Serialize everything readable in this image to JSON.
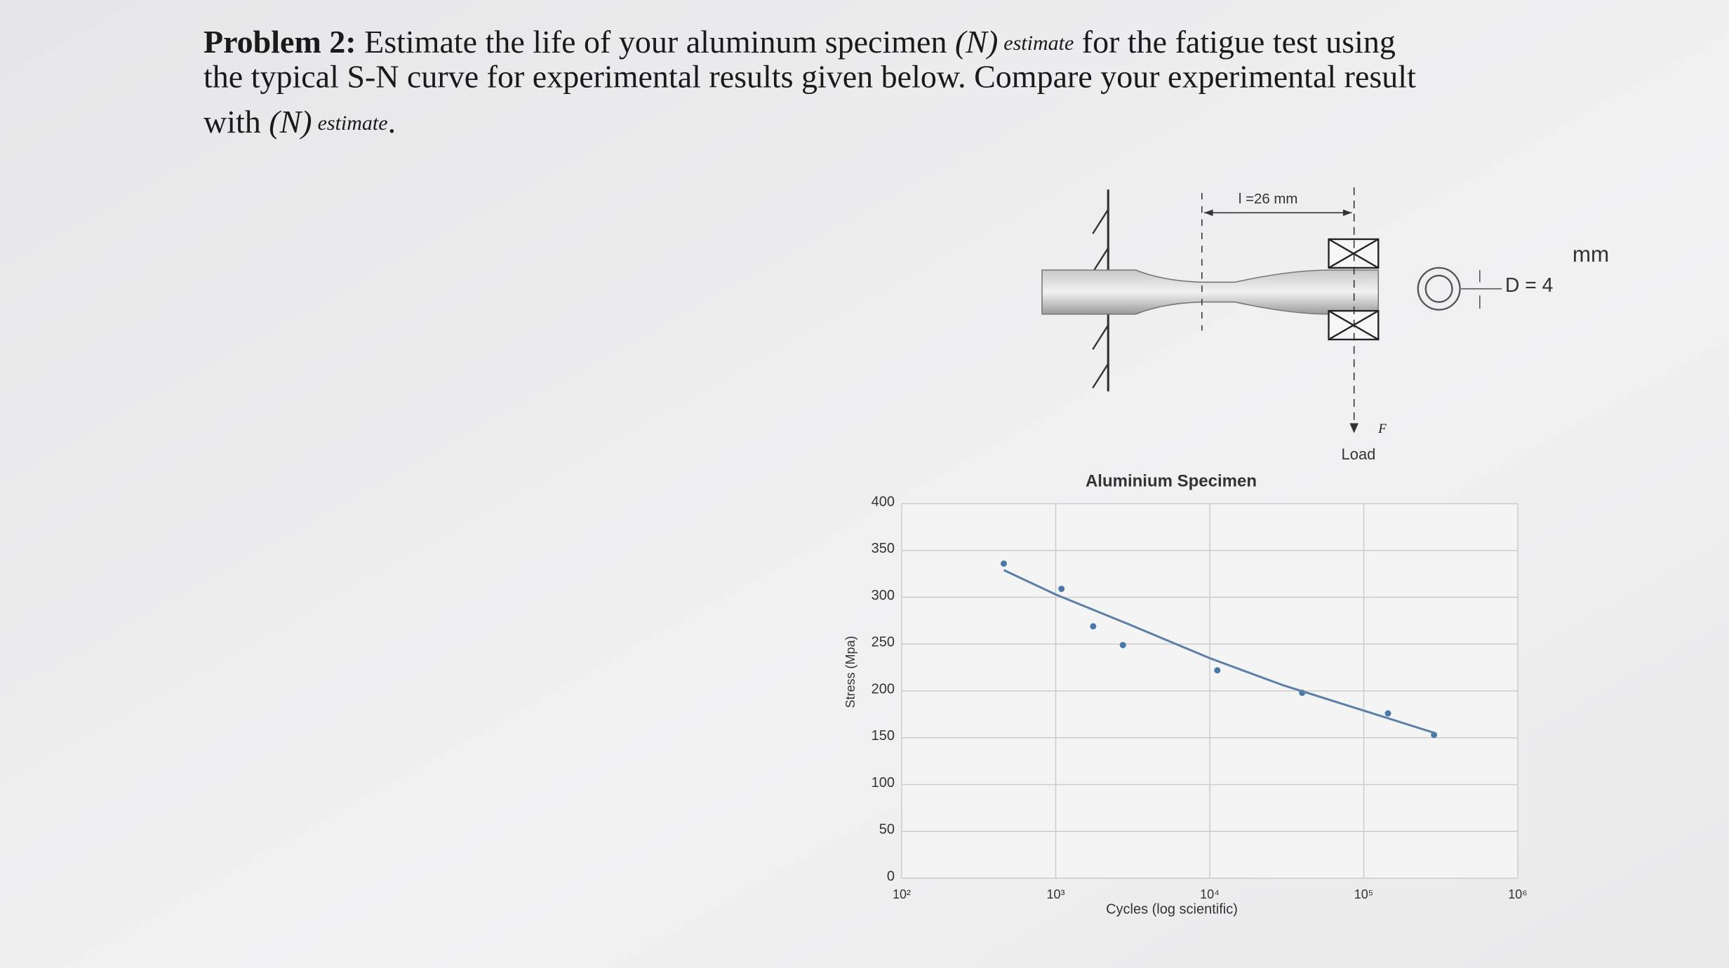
{
  "problem": {
    "label": "Problem 2:",
    "line1": " Estimate the life of your aluminum specimen ",
    "n1": "(N)",
    "est1": "estimate",
    "line1b": " for the fatigue test using",
    "line2": "the typical S-N curve for experimental results given below. Compare your experimental result",
    "line3": "with ",
    "n3": "(N)",
    "est3": "estimate",
    "dot": "."
  },
  "diagram": {
    "length": "l =26 mm",
    "force": "F",
    "load": "Load",
    "diameter": "D = 4",
    "unit": "mm"
  },
  "chart_data": {
    "type": "scatter",
    "title": "Aluminium Specimen",
    "x_label": "Cycles (log scientific)",
    "y_label": "Stress (Mpa)",
    "xscale": "log",
    "xlim": [
      100,
      1000000
    ],
    "xticks": [
      {
        "value": 100,
        "label": "10²"
      },
      {
        "value": 1000,
        "label": "10³"
      },
      {
        "value": 10000,
        "label": "10⁴"
      },
      {
        "value": 100000,
        "label": "10⁵"
      },
      {
        "value": 1000000,
        "label": "10⁶"
      }
    ],
    "ylim": [
      0,
      400
    ],
    "yticks": [
      0,
      50,
      100,
      150,
      200,
      250,
      300,
      350,
      400
    ],
    "grid": true,
    "series": [
      {
        "mode": "markers",
        "color": "#4a78a8",
        "x": [
          460,
          1090,
          1750,
          2730,
          11200,
          39800,
          143600,
          286000
        ],
        "values": [
          336,
          309,
          269,
          249,
          222,
          198,
          176,
          153
        ]
      },
      {
        "mode": "line",
        "color": "#5b7fa6",
        "x": [
          460,
          1000,
          3000,
          10000,
          30000,
          100000,
          290000
        ],
        "values": [
          329,
          303,
          271,
          235,
          206,
          179,
          155
        ]
      }
    ]
  }
}
